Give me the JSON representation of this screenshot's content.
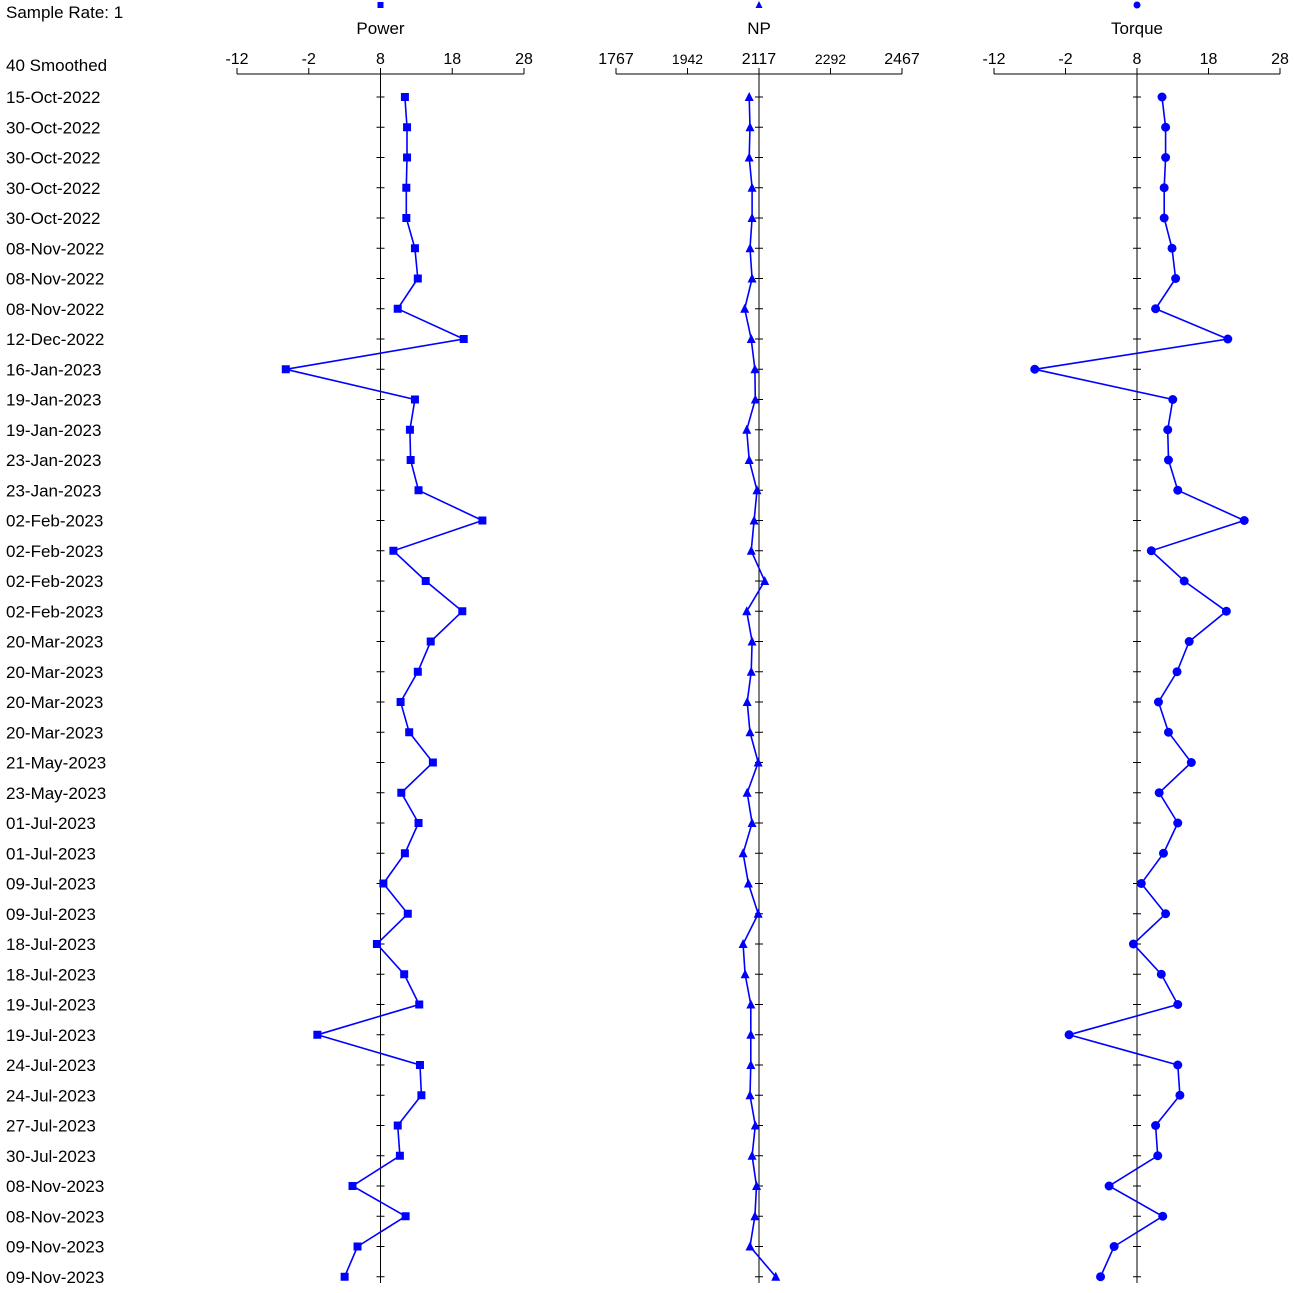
{
  "header": {
    "sample_rate": "Sample Rate: 1",
    "smoothed": "40 Smoothed"
  },
  "colors": {
    "series": "#0000ff",
    "axis": "#000000",
    "background": "#ffffff"
  },
  "chart_data": {
    "type": "line",
    "orientation": "horizontal-values-vertical-categories",
    "categories": [
      "15-Oct-2022",
      "30-Oct-2022",
      "30-Oct-2022",
      "30-Oct-2022",
      "30-Oct-2022",
      "08-Nov-2022",
      "08-Nov-2022",
      "08-Nov-2022",
      "12-Dec-2022",
      "16-Jan-2023",
      "19-Jan-2023",
      "19-Jan-2023",
      "23-Jan-2023",
      "23-Jan-2023",
      "02-Feb-2023",
      "02-Feb-2023",
      "02-Feb-2023",
      "02-Feb-2023",
      "20-Mar-2023",
      "20-Mar-2023",
      "20-Mar-2023",
      "20-Mar-2023",
      "21-May-2023",
      "23-May-2023",
      "01-Jul-2023",
      "01-Jul-2023",
      "09-Jul-2023",
      "09-Jul-2023",
      "18-Jul-2023",
      "18-Jul-2023",
      "19-Jul-2023",
      "19-Jul-2023",
      "24-Jul-2023",
      "24-Jul-2023",
      "27-Jul-2023",
      "30-Jul-2023",
      "08-Nov-2023",
      "08-Nov-2023",
      "09-Nov-2023",
      "09-Nov-2023"
    ],
    "panels": [
      {
        "name": "Power",
        "marker": "square",
        "xlim": [
          -12,
          28
        ],
        "ticks": [
          "-12",
          "-2",
          "8",
          "18",
          "28"
        ],
        "reference": 8,
        "values": [
          11.4,
          11.7,
          11.7,
          11.6,
          11.6,
          12.8,
          13.2,
          10.4,
          19.6,
          -5.2,
          12.8,
          12.1,
          12.2,
          13.3,
          22.2,
          9.8,
          14.3,
          19.4,
          15.0,
          13.2,
          10.8,
          12.0,
          15.3,
          10.9,
          13.3,
          11.4,
          8.4,
          11.8,
          7.5,
          11.3,
          13.4,
          -0.8,
          13.5,
          13.7,
          10.4,
          10.7,
          4.1,
          11.5,
          4.8,
          3.0
        ]
      },
      {
        "name": "NP",
        "marker": "triangle",
        "xlim": [
          1767,
          2467
        ],
        "ticks": [
          "1767",
          "1942",
          "2117",
          "2292",
          "2467"
        ],
        "reference": 2117,
        "values": [
          2093,
          2095,
          2093,
          2100,
          2100,
          2095,
          2100,
          2082,
          2098,
          2107,
          2108,
          2087,
          2093,
          2112,
          2105,
          2098,
          2131,
          2087,
          2100,
          2098,
          2088,
          2095,
          2115,
          2088,
          2100,
          2078,
          2091,
          2115,
          2078,
          2083,
          2097,
          2097,
          2097,
          2095,
          2108,
          2100,
          2111,
          2107,
          2095,
          2158
        ]
      },
      {
        "name": "Torque",
        "marker": "circle",
        "xlim": [
          -12,
          28
        ],
        "ticks": [
          "-12",
          "-2",
          "8",
          "18",
          "28"
        ],
        "reference": 8,
        "values": [
          11.5,
          12.0,
          12.0,
          11.8,
          11.8,
          12.9,
          13.4,
          10.6,
          20.7,
          -6.3,
          13.0,
          12.3,
          12.4,
          13.7,
          23.0,
          10.0,
          14.6,
          20.5,
          15.3,
          13.6,
          11.0,
          12.4,
          15.6,
          11.1,
          13.7,
          11.7,
          8.6,
          12.0,
          7.5,
          11.4,
          13.7,
          -1.5,
          13.7,
          14.0,
          10.6,
          10.9,
          4.1,
          11.6,
          4.8,
          2.9
        ]
      }
    ]
  }
}
